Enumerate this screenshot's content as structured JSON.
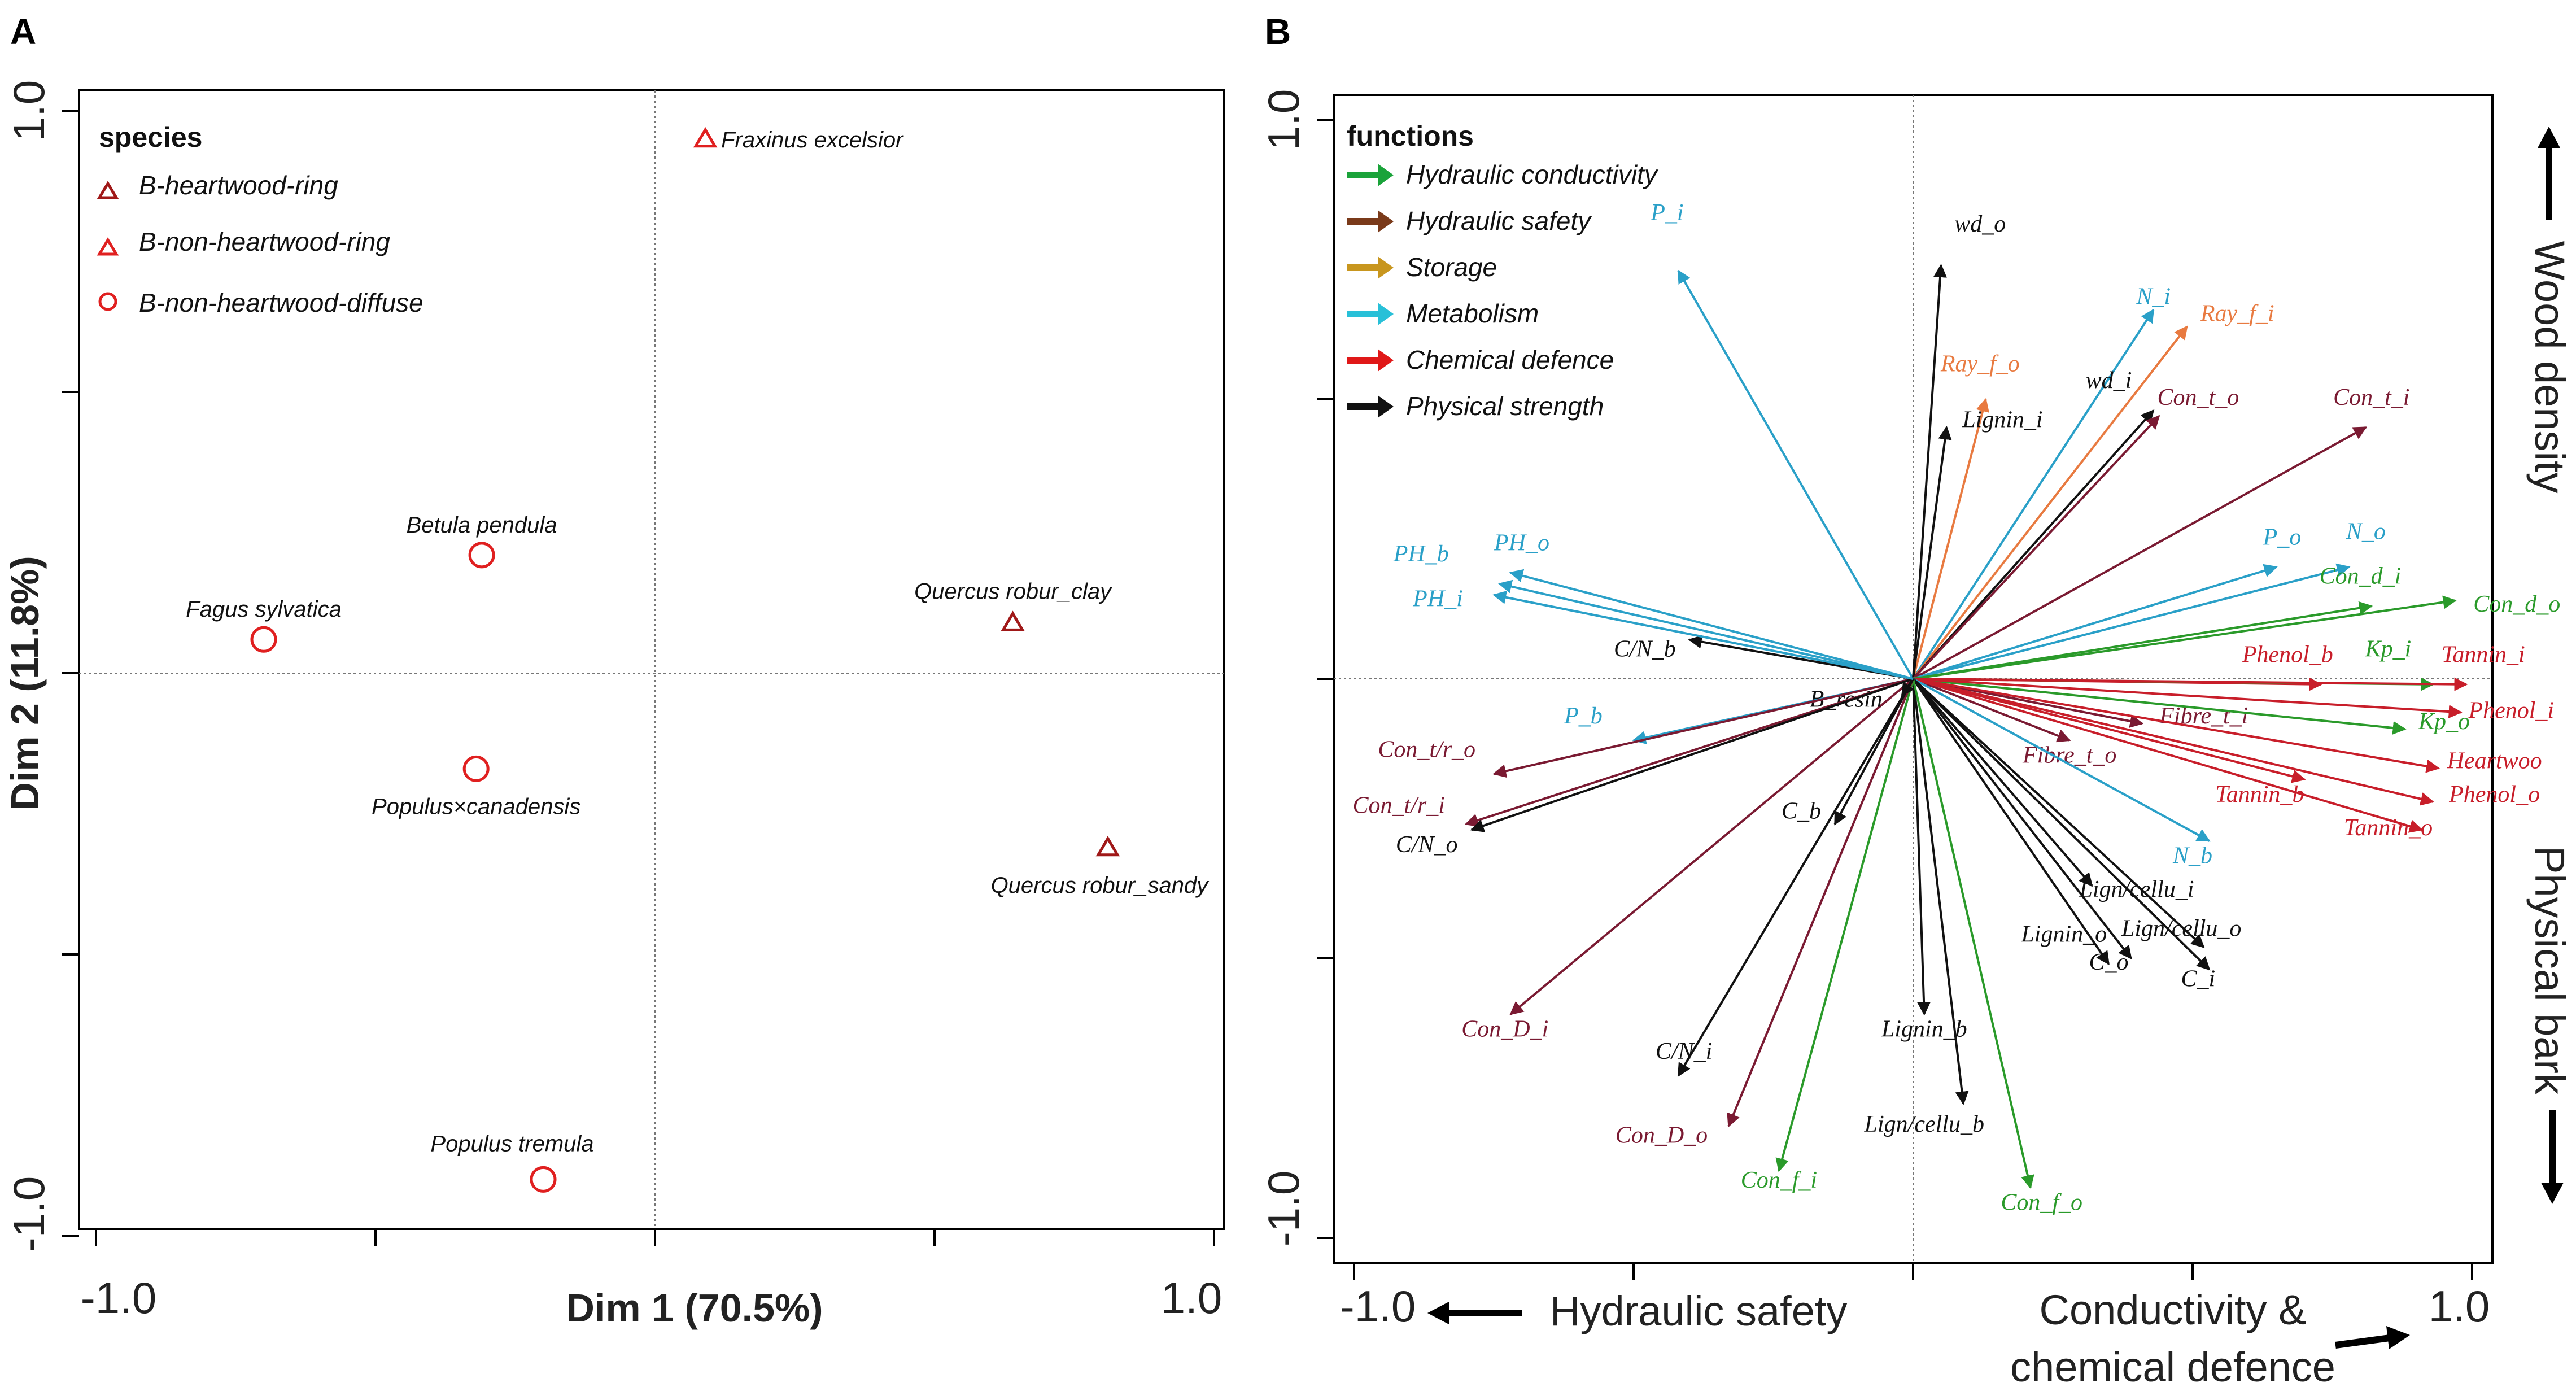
{
  "chart_data": [
    {
      "type": "scatter",
      "panel_label": "A",
      "xlabel": "Dim 1 (70.5%)",
      "ylabel": "Dim 2 (11.8%)",
      "xlim": [
        -1.0,
        1.0
      ],
      "ylim": [
        -1.0,
        1.0
      ],
      "tick_labels": {
        "x_min": "-1.0",
        "x_max": "1.0",
        "y_max": "1.0",
        "y_min": "-1.0"
      },
      "legend": {
        "title": "species",
        "position": "top-left",
        "entries": [
          {
            "label": "B-heartwood-ring",
            "marker": "triangle",
            "color": "#a01818"
          },
          {
            "label": "B-non-heartwood-ring",
            "marker": "triangle",
            "color": "#e02020"
          },
          {
            "label": "B-non-heartwood-diffuse",
            "marker": "circle",
            "color": "#e02020"
          }
        ]
      },
      "points": [
        {
          "label": "Fraxinus excelsior",
          "x": 0.09,
          "y": 0.95,
          "group": "B-non-heartwood-ring"
        },
        {
          "label": "Betula pendula",
          "x": -0.31,
          "y": 0.21,
          "group": "B-non-heartwood-diffuse"
        },
        {
          "label": "Fagus sylvatica",
          "x": -0.7,
          "y": 0.06,
          "group": "B-non-heartwood-diffuse"
        },
        {
          "label": "Quercus robur_clay",
          "x": 0.64,
          "y": 0.09,
          "group": "B-heartwood-ring"
        },
        {
          "label": "Populus×canadensis",
          "x": -0.32,
          "y": -0.17,
          "group": "B-non-heartwood-diffuse"
        },
        {
          "label": "Quercus robur_sandy",
          "x": 0.81,
          "y": -0.31,
          "group": "B-heartwood-ring"
        },
        {
          "label": "Populus tremula",
          "x": -0.2,
          "y": -0.9,
          "group": "B-non-heartwood-diffuse"
        }
      ]
    },
    {
      "type": "biplot",
      "panel_label": "B",
      "xlim": [
        -1.0,
        1.0
      ],
      "ylim": [
        -1.0,
        1.0
      ],
      "tick_labels": {
        "x_min": "-1.0",
        "x_max": "1.0",
        "y_max": "1.0",
        "y_min": "-1.0"
      },
      "axis_annotations": {
        "left": "Hydraulic safety",
        "right_line1": "Conductivity &",
        "right_line2": "chemical defence",
        "top": "Wood density",
        "bottom": "Physical bark"
      },
      "legend": {
        "title": "functions",
        "position": "top-left",
        "entries": [
          {
            "label": "Hydraulic conductivity",
            "color": "#1aa33a"
          },
          {
            "label": "Hydraulic safety",
            "color": "#7a3a1a"
          },
          {
            "label": "Storage",
            "color": "#c8961e"
          },
          {
            "label": "Metabolism",
            "color": "#28c0d8"
          },
          {
            "label": "Chemical defence",
            "color": "#e01818"
          },
          {
            "label": "Physical strength",
            "color": "#111111"
          }
        ]
      },
      "colors": {
        "Hydraulic conductivity": "#2a9a2a",
        "Hydraulic safety": "#7a1a32",
        "Storage": "#e87a40",
        "Metabolism": "#2aa0c8",
        "Chemical defence": "#c81e2a",
        "Physical strength": "#111111"
      },
      "vectors": [
        {
          "label": "P_i",
          "x": -0.42,
          "y": 0.73,
          "group": "Metabolism",
          "lx": -0.44,
          "ly": 0.82
        },
        {
          "label": "wd_o",
          "x": 0.05,
          "y": 0.74,
          "group": "Physical strength",
          "lx": 0.12,
          "ly": 0.8
        },
        {
          "label": "N_i",
          "x": 0.43,
          "y": 0.66,
          "group": "Metabolism",
          "lx": 0.43,
          "ly": 0.67
        },
        {
          "label": "Ray_f_i",
          "x": 0.49,
          "y": 0.63,
          "group": "Storage",
          "lx": 0.58,
          "ly": 0.64
        },
        {
          "label": "Ray_f_o",
          "x": 0.13,
          "y": 0.5,
          "group": "Storage",
          "lx": 0.12,
          "ly": 0.55
        },
        {
          "label": "wd_i",
          "x": 0.43,
          "y": 0.48,
          "group": "Physical strength",
          "lx": 0.35,
          "ly": 0.52
        },
        {
          "label": "Lignin_i",
          "x": 0.06,
          "y": 0.45,
          "group": "Physical strength",
          "lx": 0.16,
          "ly": 0.45
        },
        {
          "label": "Con_t_o",
          "x": 0.44,
          "y": 0.47,
          "group": "Hydraulic safety",
          "lx": 0.51,
          "ly": 0.49
        },
        {
          "label": "Con_t_i",
          "x": 0.81,
          "y": 0.45,
          "group": "Hydraulic safety",
          "lx": 0.82,
          "ly": 0.49
        },
        {
          "label": "P_o",
          "x": 0.65,
          "y": 0.2,
          "group": "Metabolism",
          "lx": 0.66,
          "ly": 0.24
        },
        {
          "label": "N_o",
          "x": 0.78,
          "y": 0.2,
          "group": "Metabolism",
          "lx": 0.81,
          "ly": 0.25
        },
        {
          "label": "Con_d_i",
          "x": 0.82,
          "y": 0.13,
          "group": "Hydraulic conductivity",
          "lx": 0.8,
          "ly": 0.17
        },
        {
          "label": "Con_d_o",
          "x": 0.97,
          "y": 0.14,
          "group": "Hydraulic conductivity",
          "lx": 1.08,
          "ly": 0.12
        },
        {
          "label": "Phenol_b",
          "x": 0.73,
          "y": -0.01,
          "group": "Chemical defence",
          "lx": 0.67,
          "ly": 0.03
        },
        {
          "label": "Kp_i",
          "x": 0.93,
          "y": -0.01,
          "group": "Hydraulic conductivity",
          "lx": 0.85,
          "ly": 0.04
        },
        {
          "label": "Tannin_i",
          "x": 0.99,
          "y": -0.01,
          "group": "Chemical defence",
          "lx": 1.02,
          "ly": 0.03
        },
        {
          "label": "Fibre_t_i",
          "x": 0.41,
          "y": -0.08,
          "group": "Hydraulic safety",
          "lx": 0.52,
          "ly": -0.08
        },
        {
          "label": "Kp_o",
          "x": 0.88,
          "y": -0.09,
          "group": "Hydraulic conductivity",
          "lx": 0.95,
          "ly": -0.09
        },
        {
          "label": "Phenol_i",
          "x": 0.98,
          "y": -0.06,
          "group": "Chemical defence",
          "lx": 1.07,
          "ly": -0.07
        },
        {
          "label": "Heartwoo",
          "x": 0.94,
          "y": -0.16,
          "group": "Chemical defence",
          "lx": 1.04,
          "ly": -0.16
        },
        {
          "label": "Fibre_t_o",
          "x": 0.28,
          "y": -0.11,
          "group": "Hydraulic safety",
          "lx": 0.28,
          "ly": -0.15
        },
        {
          "label": "Tannin_b",
          "x": 0.7,
          "y": -0.18,
          "group": "Chemical defence",
          "lx": 0.62,
          "ly": -0.22
        },
        {
          "label": "Phenol_o",
          "x": 0.93,
          "y": -0.22,
          "group": "Chemical defence",
          "lx": 1.04,
          "ly": -0.22
        },
        {
          "label": "Tannin_o",
          "x": 0.91,
          "y": -0.27,
          "group": "Chemical defence",
          "lx": 0.85,
          "ly": -0.28
        },
        {
          "label": "N_b",
          "x": 0.53,
          "y": -0.29,
          "group": "Metabolism",
          "lx": 0.5,
          "ly": -0.33
        },
        {
          "label": "Lign/cellu_i",
          "x": 0.32,
          "y": -0.37,
          "group": "Physical strength",
          "lx": 0.4,
          "ly": -0.39
        },
        {
          "label": "Lign/cellu_o",
          "x": 0.52,
          "y": -0.48,
          "group": "Physical strength",
          "lx": 0.48,
          "ly": -0.46
        },
        {
          "label": "Lignin_o",
          "x": 0.39,
          "y": -0.5,
          "group": "Physical strength",
          "lx": 0.27,
          "ly": -0.47
        },
        {
          "label": "C_o",
          "x": 0.35,
          "y": -0.51,
          "group": "Physical strength",
          "lx": 0.35,
          "ly": -0.52
        },
        {
          "label": "C_i",
          "x": 0.53,
          "y": -0.52,
          "group": "Physical strength",
          "lx": 0.51,
          "ly": -0.55
        },
        {
          "label": "Lignin_b",
          "x": 0.02,
          "y": -0.6,
          "group": "Physical strength",
          "lx": 0.02,
          "ly": -0.64
        },
        {
          "label": "Lign/cellu_b",
          "x": 0.09,
          "y": -0.76,
          "group": "Physical strength",
          "lx": 0.02,
          "ly": -0.81
        },
        {
          "label": "Con_f_o",
          "x": 0.21,
          "y": -0.91,
          "group": "Hydraulic conductivity",
          "lx": 0.23,
          "ly": -0.95
        },
        {
          "label": "Con_f_i",
          "x": -0.24,
          "y": -0.88,
          "group": "Hydraulic conductivity",
          "lx": -0.24,
          "ly": -0.91
        },
        {
          "label": "Con_D_o",
          "x": -0.33,
          "y": -0.8,
          "group": "Hydraulic safety",
          "lx": -0.45,
          "ly": -0.83
        },
        {
          "label": "C/N_i",
          "x": -0.42,
          "y": -0.71,
          "group": "Physical strength",
          "lx": -0.41,
          "ly": -0.68
        },
        {
          "label": "Con_D_i",
          "x": -0.72,
          "y": -0.6,
          "group": "Hydraulic safety",
          "lx": -0.73,
          "ly": -0.64
        },
        {
          "label": "C_b",
          "x": -0.14,
          "y": -0.26,
          "group": "Physical strength",
          "lx": -0.2,
          "ly": -0.25
        },
        {
          "label": "B_resin",
          "x": -0.02,
          "y": -0.03,
          "group": "Physical strength",
          "lx": -0.12,
          "ly": -0.05
        },
        {
          "label": "P_b",
          "x": -0.5,
          "y": -0.11,
          "group": "Metabolism",
          "lx": -0.59,
          "ly": -0.08
        },
        {
          "label": "Con_t/r_o",
          "x": -0.75,
          "y": -0.17,
          "group": "Hydraulic safety",
          "lx": -0.87,
          "ly": -0.14
        },
        {
          "label": "Con_t/r_i",
          "x": -0.8,
          "y": -0.26,
          "group": "Hydraulic safety",
          "lx": -0.92,
          "ly": -0.24
        },
        {
          "label": "C/N_o",
          "x": -0.79,
          "y": -0.27,
          "group": "Physical strength",
          "lx": -0.87,
          "ly": -0.31
        },
        {
          "label": "C/N_b",
          "x": -0.4,
          "y": 0.07,
          "group": "Physical strength",
          "lx": -0.48,
          "ly": 0.04
        },
        {
          "label": "PH_b",
          "x": -0.72,
          "y": 0.19,
          "group": "Metabolism",
          "lx": -0.88,
          "ly": 0.21
        },
        {
          "label": "PH_o",
          "x": -0.74,
          "y": 0.17,
          "group": "Metabolism",
          "lx": -0.7,
          "ly": 0.23
        },
        {
          "label": "PH_i",
          "x": -0.75,
          "y": 0.15,
          "group": "Metabolism",
          "lx": -0.85,
          "ly": 0.13
        }
      ]
    }
  ]
}
